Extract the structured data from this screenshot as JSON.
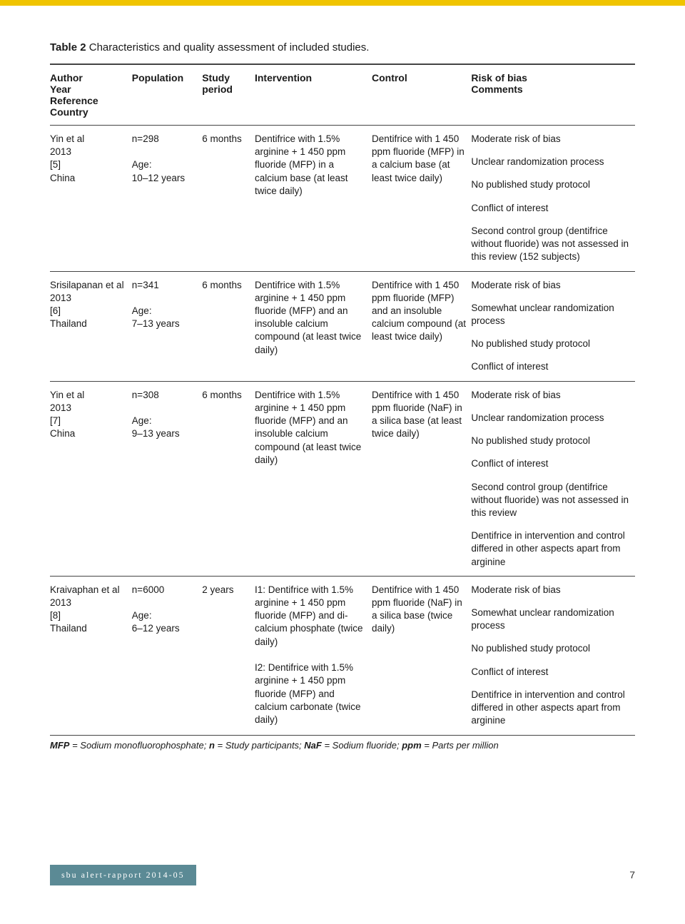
{
  "title_prefix": "Table 2",
  "title_rest": " Characteristics and quality assessment of included studies.",
  "headers": {
    "c0": "Author\nYear\nReference\nCountry",
    "c1": "Population",
    "c2": "Study period",
    "c3": "Intervention",
    "c4": "Control",
    "c5": "Risk of bias\nComments"
  },
  "rows": [
    {
      "c0": "Yin et al\n2013\n[5]\nChina",
      "c1": "n=298\n\nAge:\n10–12 years",
      "c2": "6 months",
      "c3": "Dentifrice with 1.5% arginine + 1 450 ppm fluoride (MFP) in a calcium base (at least twice daily)",
      "c4": "Dentifrice with 1 450 ppm fluoride (MFP) in a calcium base (at least twice daily)",
      "c5": [
        "Moderate risk of bias",
        "Unclear randomization process",
        "No published study protocol",
        "Conflict of interest",
        "Second control group (dentifrice without fluoride) was not assessed in this review (152 subjects)"
      ]
    },
    {
      "c0": "Srisilapanan et al\n2013\n[6]\nThailand",
      "c1": "n=341\n\nAge:\n7–13 years",
      "c2": "6 months",
      "c3": "Dentifrice with 1.5% arginine + 1 450 ppm fluoride (MFP) and an insoluble calcium compound (at least twice daily)",
      "c4": "Dentifrice with 1 450 ppm fluoride (MFP) and an insoluble calcium compound (at least twice daily)",
      "c5": [
        "Moderate risk of bias",
        "Somewhat unclear randomization process",
        "No published study protocol",
        "Conflict of interest"
      ]
    },
    {
      "c0": "Yin et al\n2013\n[7]\nChina",
      "c1": "n=308\n\nAge:\n9–13 years",
      "c2": "6 months",
      "c3": "Dentifrice with 1.5% arginine + 1 450 ppm fluoride (MFP) and an insoluble calcium compound (at least twice daily)",
      "c4": "Dentifrice with 1 450 ppm fluoride (NaF) in a silica base (at least twice daily)",
      "c5": [
        "Moderate risk of bias",
        "Unclear randomization process",
        "No published study protocol",
        "Conflict of interest",
        "Second control group (dentifrice without fluoride) was not assessed in this review",
        "Dentifrice in intervention and control differed in other aspects apart from arginine"
      ]
    },
    {
      "c0": "Kraivaphan et al\n2013\n[8]\nThailand",
      "c1": "n=6000\n\nAge:\n6–12 years",
      "c2": "2 years",
      "c3": "I1: Dentifrice with 1.5% arginine + 1 450 ppm fluoride (MFP) and di-calcium phosphate (twice daily)\n\nI2: Dentifrice with 1.5% arginine + 1 450 ppm fluoride (MFP) and calcium carbonate (twice daily)",
      "c4": "Dentifrice with 1 450 ppm fluoride (NaF) in a silica base (twice daily)",
      "c5": [
        "Moderate risk of bias",
        "Somewhat unclear randomization process",
        "No published study protocol",
        "Conflict of interest",
        "Dentifrice in intervention and control differed in other aspects apart from arginine"
      ]
    }
  ],
  "footnote_parts": [
    {
      "b": "MFP",
      "t": " = Sodium monofluorophosphate; "
    },
    {
      "b": "n",
      "t": " = Study participants; "
    },
    {
      "b": "NaF",
      "t": " = Sodium fluoride; "
    },
    {
      "b": "ppm",
      "t": " = Parts per million"
    }
  ],
  "footer_label": "sbu alert-rapport 2014-05",
  "page_number": "7",
  "col_widths": [
    "14%",
    "12%",
    "9%",
    "20%",
    "17%",
    "28%"
  ]
}
